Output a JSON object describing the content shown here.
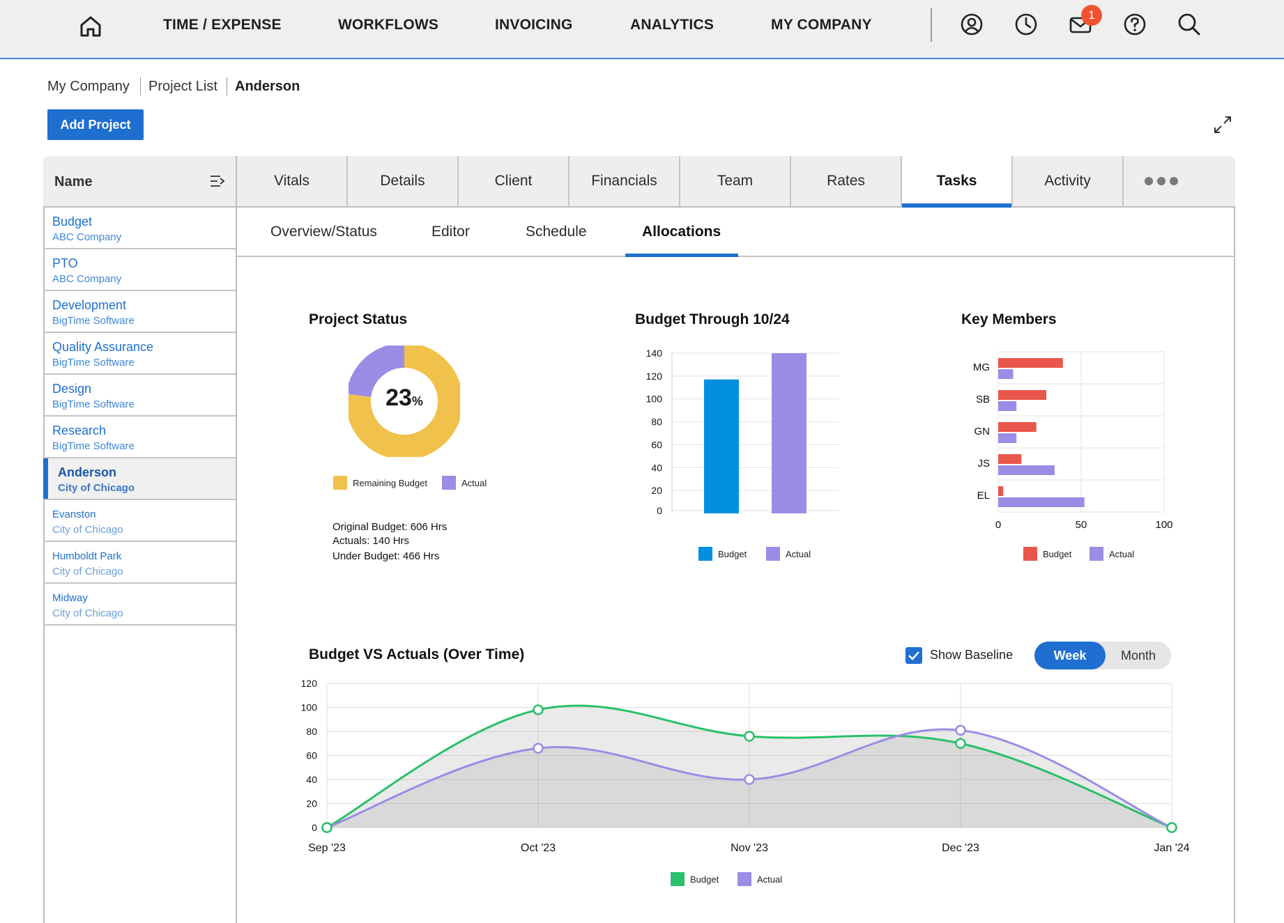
{
  "nav": {
    "items": [
      {
        "label": "TIME / EXPENSE",
        "x": 234
      },
      {
        "label": "WORKFLOWS",
        "x": 485
      },
      {
        "label": "INVOICING",
        "x": 710
      },
      {
        "label": "ANALYTICS",
        "x": 904
      },
      {
        "label": "MY COMPANY",
        "x": 1106
      }
    ],
    "mail_badge": "1",
    "icons": [
      "home-icon",
      "user-icon",
      "clock-icon",
      "mail-icon",
      "help-icon",
      "search-icon"
    ]
  },
  "breadcrumb": {
    "a": "My Company",
    "b": "Project List",
    "c": "Anderson"
  },
  "add_project_label": "Add Project",
  "list": {
    "header": "Name",
    "items": [
      {
        "title": "Budget",
        "sub": "ABC Company"
      },
      {
        "title": "PTO",
        "sub": "ABC Company"
      },
      {
        "title": "Development",
        "sub": "BigTime Software"
      },
      {
        "title": "Quality Assurance",
        "sub": "BigTime Software"
      },
      {
        "title": "Design",
        "sub": "BigTime Software"
      },
      {
        "title": "Research",
        "sub": "BigTime Software"
      },
      {
        "title": "Anderson",
        "sub": "City of Chicago"
      },
      {
        "title": "Evanston",
        "sub": "City of Chicago"
      },
      {
        "title": "Humboldt Park",
        "sub": "City of Chicago"
      },
      {
        "title": "Midway",
        "sub": "City of Chicago"
      }
    ]
  },
  "tabs": [
    "Vitals",
    "Details",
    "Client",
    "Financials",
    "Team",
    "Rates",
    "Tasks",
    "Activity"
  ],
  "active_tab": "Tasks",
  "subtabs": [
    "Overview/Status",
    "Editor",
    "Schedule",
    "Allocations"
  ],
  "active_subtab": "Allocations",
  "project_status": {
    "title": "Project Status",
    "percent": "23",
    "percent_sign": "%",
    "legend_remaining": "Remaining Budget",
    "legend_actual": "Actual",
    "original_budget": "Original Budget: 606 Hrs",
    "actuals": "Actuals: 140 Hrs",
    "under_budget": "Under Budget: 466 Hrs"
  },
  "budget_chart": {
    "title": "Budget Through 10/24",
    "legend_budget": "Budget",
    "legend_actual": "Actual"
  },
  "members_chart": {
    "title": "Key Members",
    "legend_budget": "Budget",
    "legend_actual": "Actual"
  },
  "bva": {
    "title": "Budget VS Actuals (Over Time)",
    "show_baseline": "Show Baseline",
    "week": "Week",
    "month": "Month",
    "legend_budget": "Budget",
    "legend_actual": "Actual"
  },
  "chart_data": [
    {
      "type": "pie",
      "title": "Project Status",
      "slices": [
        {
          "name": "Remaining Budget",
          "value": 77,
          "color": "#f0c24b"
        },
        {
          "name": "Actual",
          "value": 23,
          "color": "#9b8ce6"
        }
      ]
    },
    {
      "type": "bar",
      "title": "Budget Through 10/24",
      "categories": [
        "Budget",
        "Actual"
      ],
      "values": [
        117,
        140
      ],
      "colors": [
        "#0090df",
        "#9b8ce6"
      ],
      "ylim": [
        0,
        140
      ],
      "yticks": [
        0,
        20,
        40,
        60,
        80,
        100,
        120,
        140
      ]
    },
    {
      "type": "bar",
      "orientation": "horizontal",
      "title": "Key Members",
      "categories": [
        "MG",
        "SB",
        "GN",
        "JS",
        "EL"
      ],
      "series": [
        {
          "name": "Budget",
          "values": [
            39,
            29,
            23,
            14,
            3
          ],
          "color": "#e9564b"
        },
        {
          "name": "Actual",
          "values": [
            9,
            11,
            11,
            34,
            52
          ],
          "color": "#9b8ce6"
        }
      ],
      "xlim": [
        0,
        100
      ],
      "xticks": [
        0,
        50,
        100
      ]
    },
    {
      "type": "line",
      "title": "Budget VS Actuals (Over Time)",
      "x": [
        "Sep '23",
        "Oct '23",
        "Nov '23",
        "Dec '23",
        "Jan '24"
      ],
      "series": [
        {
          "name": "Budget",
          "values": [
            0,
            98,
            76,
            70,
            0
          ],
          "color": "#28c06a"
        },
        {
          "name": "Actual",
          "values": [
            0,
            66,
            40,
            81,
            0
          ],
          "color": "#9b8ce6"
        }
      ],
      "ylim": [
        0,
        120
      ],
      "yticks": [
        0,
        20,
        40,
        60,
        80,
        100,
        120
      ]
    }
  ]
}
